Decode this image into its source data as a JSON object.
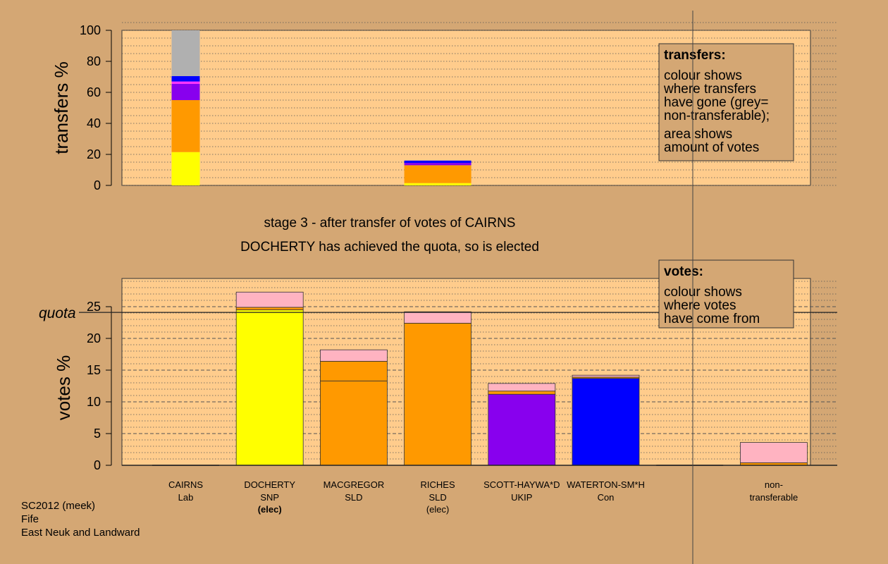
{
  "chart_data": [
    {
      "type": "bar",
      "stacked": true,
      "ylabel": "transfers %",
      "ylim": [
        0,
        100
      ],
      "yticks": [
        "0",
        "20",
        "40",
        "60",
        "80",
        "100"
      ],
      "grid": "dotted",
      "bars": [
        {
          "index": 0,
          "segments": [
            {
              "value": 21.5,
              "color": "#ffff00"
            },
            {
              "value": 33.5,
              "color": "#ff9900"
            },
            {
              "value": 10.5,
              "color": "#8800ee"
            },
            {
              "value": 1.5,
              "color": "#ff33ff"
            },
            {
              "value": 3.5,
              "color": "#0000ff"
            },
            {
              "value": 29.5,
              "color": "#b0b0b0"
            }
          ]
        },
        {
          "index": 3,
          "segments": [
            {
              "value": 1.5,
              "color": "#ffff00"
            },
            {
              "value": 11.5,
              "color": "#ff9900"
            },
            {
              "value": 1.5,
              "color": "#8800ee"
            },
            {
              "value": 1.5,
              "color": "#0000ff"
            }
          ]
        }
      ],
      "legend": {
        "title": "transfers:",
        "lines1": [
          "colour shows",
          "where transfers",
          "have gone (grey=",
          "non-transferable);"
        ],
        "lines2": [
          "area shows",
          "amount of votes"
        ]
      }
    },
    {
      "type": "bar",
      "stacked": true,
      "ylabel": "votes %",
      "ylim": [
        0,
        29
      ],
      "yticks": [
        "0",
        "5",
        "10",
        "15",
        "20",
        "25"
      ],
      "quota": 24.1,
      "quota_label": "quota",
      "categories": [
        {
          "name": "CAIRNS",
          "party": "Lab",
          "note": ""
        },
        {
          "name": "DOCHERTY",
          "party": "SNP",
          "note": "(elec)",
          "note_bold": true
        },
        {
          "name": "MACGREGOR",
          "party": "SLD",
          "note": ""
        },
        {
          "name": "RICHES",
          "party": "SLD",
          "note": "(elec)",
          "note_bold": false
        },
        {
          "name": "SCOTT-HAYWA*D",
          "party": "UKIP",
          "note": ""
        },
        {
          "name": "WATERTON-SM*H",
          "party": "Con",
          "note": ""
        },
        {
          "name": "",
          "party": "",
          "note": ""
        },
        {
          "name": "non-",
          "party": "transferable",
          "note": ""
        }
      ],
      "series": [
        {
          "index": 1,
          "segments": [
            {
              "value": 24.5,
              "color": "#ffff00"
            },
            {
              "value": 0.4,
              "color": "#ff9900"
            },
            {
              "value": 2.4,
              "color": "#ffb3c1"
            }
          ]
        },
        {
          "index": 2,
          "segments": [
            {
              "value": 13.3,
              "color": "#ff9900"
            },
            {
              "value": 3.1,
              "color": "#ff9900"
            },
            {
              "value": 1.8,
              "color": "#ffb3c1"
            }
          ]
        },
        {
          "index": 3,
          "segments": [
            {
              "value": 22.4,
              "color": "#ff9900"
            },
            {
              "value": 1.8,
              "color": "#ffb3c1"
            }
          ]
        },
        {
          "index": 4,
          "segments": [
            {
              "value": 11.2,
              "color": "#8800ee"
            },
            {
              "value": 0.5,
              "color": "#ff9900"
            },
            {
              "value": 1.2,
              "color": "#ffb3c1"
            }
          ]
        },
        {
          "index": 5,
          "segments": [
            {
              "value": 13.7,
              "color": "#0000ff"
            },
            {
              "value": 0.2,
              "color": "#ff9900"
            },
            {
              "value": 0.3,
              "color": "#ffb3c1"
            }
          ]
        },
        {
          "index": 7,
          "segments": [
            {
              "value": 0.4,
              "color": "#ff9900"
            },
            {
              "value": 3.2,
              "color": "#ffb3c1"
            }
          ]
        }
      ],
      "legend": {
        "title": "votes:",
        "lines1": [
          "colour shows",
          "where votes",
          "have come from"
        ]
      }
    }
  ],
  "subtitle": {
    "line1": "stage 3 - after transfer of votes of CAIRNS",
    "line2": "DOCHERTY has achieved the quota, so is elected"
  },
  "footer": {
    "line1": "SC2012 (meek)",
    "line2": "Fife",
    "line3": "East Neuk and Landward"
  },
  "colors": {
    "background": "#d4a774",
    "panel": "#ffcc8c"
  }
}
